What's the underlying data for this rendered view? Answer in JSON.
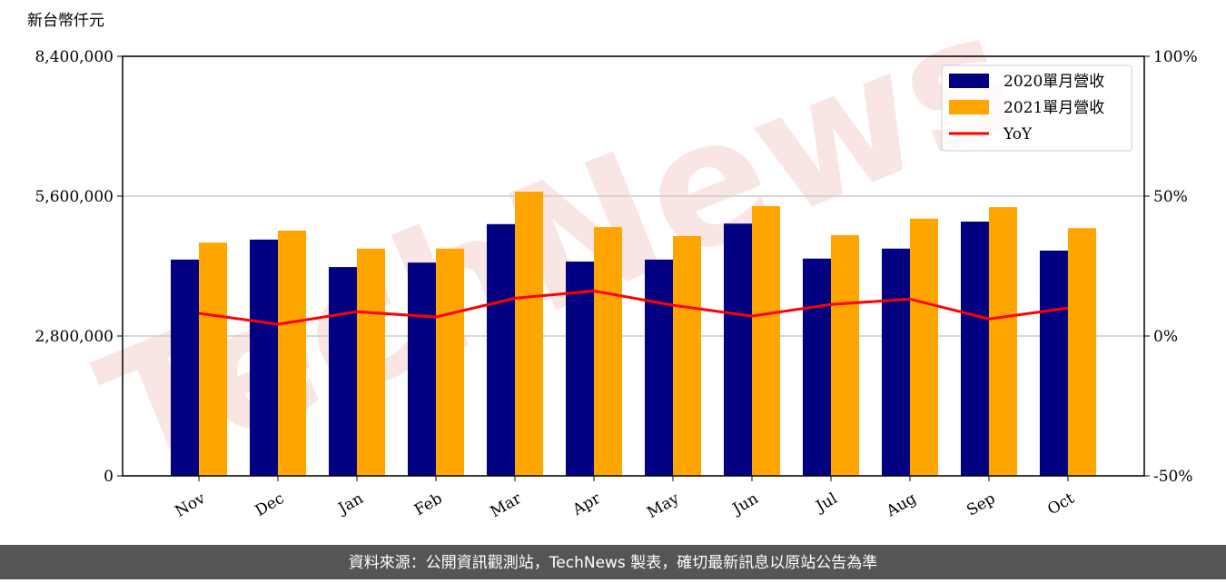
{
  "chart_data": {
    "type": "bar",
    "ylabel": "新台幣仟元",
    "watermark": "TechNews",
    "footer": "資料來源：公開資訊觀測站，TechNews 製表，確切最新訊息以原站公告為準",
    "categories": [
      "Nov",
      "Dec",
      "Jan",
      "Feb",
      "Mar",
      "Apr",
      "May",
      "Jun",
      "Jul",
      "Aug",
      "Sep",
      "Oct"
    ],
    "series": [
      {
        "name": "2020單月營收",
        "color": "#000080",
        "values": [
          4330000,
          4730000,
          4180000,
          4270000,
          5040000,
          4290000,
          4330000,
          5050000,
          4350000,
          4550000,
          5090000,
          4510000
        ]
      },
      {
        "name": "2021單月營收",
        "color": "#ffa500",
        "values": [
          4670000,
          4910000,
          4550000,
          4550000,
          5690000,
          4980000,
          4800000,
          5400000,
          4820000,
          5150000,
          5380000,
          4960000
        ]
      },
      {
        "name": "YoY",
        "type": "line",
        "axis": "y2",
        "color": "#ff0000",
        "values": [
          8.1,
          4.2,
          8.7,
          6.8,
          13.5,
          16.1,
          11.0,
          7.1,
          11.3,
          13.2,
          6.1,
          10.0
        ]
      }
    ],
    "ylim": [
      0,
      8400000
    ],
    "yticks": [
      0,
      {
        "value": 2800000,
        "label": "2,800,000"
      },
      {
        "value": 5600000,
        "label": "5,600,000"
      },
      {
        "value": 8400000,
        "label": "8,400,000"
      }
    ],
    "y2lim": [
      -50,
      100
    ],
    "y2ticks": [
      {
        "value": -50,
        "label": "-50%"
      },
      {
        "value": 0,
        "label": "0%"
      },
      {
        "value": 50,
        "label": "50%"
      },
      {
        "value": 100,
        "label": "100%"
      }
    ],
    "grid": true,
    "legend": "upper right"
  }
}
